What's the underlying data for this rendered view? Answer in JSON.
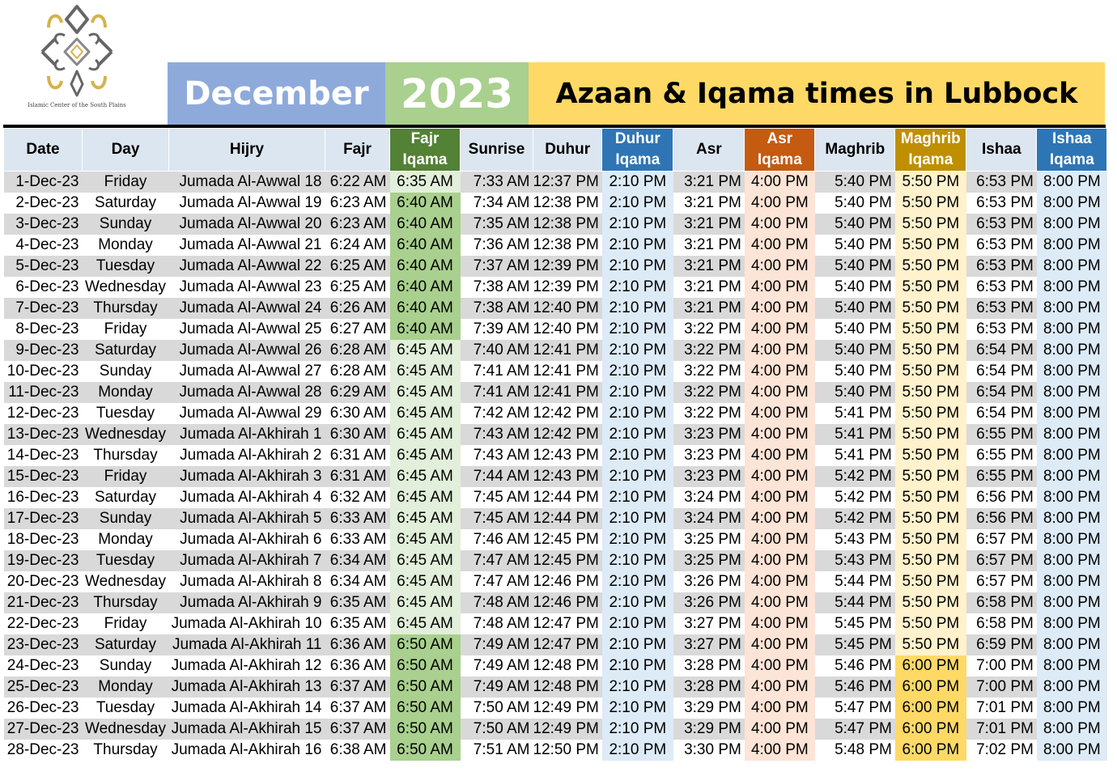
{
  "logo": {
    "icon": "flower-ornament-icon",
    "caption": "Islamic Center of the South Plains"
  },
  "banner": {
    "month": "December",
    "year": "2023",
    "title": "Azaan & Iqama times in Lubbock"
  },
  "colors": {
    "month_bg": "#8eaadb",
    "year_bg": "#a9d08e",
    "title_bg": "#ffd966",
    "fajr_iqama": "#538135",
    "duhur_iqama": "#2f75b5",
    "asr_iqama": "#c55a11",
    "maghrib_iqama": "#bf8f00",
    "ishaa_iqama": "#2e75b6"
  },
  "columns": [
    "Date",
    "Day",
    "Hijry",
    "Fajr",
    "Fajr Iqama",
    "Sunrise",
    "Duhur",
    "Duhur Iqama",
    "Asr",
    "Asr Iqama",
    "Maghrib",
    "Maghrib Iqama",
    "Ishaa",
    "Ishaa Iqama"
  ],
  "rows": [
    [
      "1-Dec-23",
      "Friday",
      "Jumada Al-Awwal 18",
      "6:22 AM",
      "6:35 AM",
      "7:33 AM",
      "12:37 PM",
      "2:10 PM",
      "3:21 PM",
      "4:00 PM",
      "5:40 PM",
      "5:50 PM",
      "6:53 PM",
      "8:00 PM"
    ],
    [
      "2-Dec-23",
      "Saturday",
      "Jumada Al-Awwal 19",
      "6:23 AM",
      "6:40 AM",
      "7:34 AM",
      "12:38 PM",
      "2:10 PM",
      "3:21 PM",
      "4:00 PM",
      "5:40 PM",
      "5:50 PM",
      "6:53 PM",
      "8:00 PM"
    ],
    [
      "3-Dec-23",
      "Sunday",
      "Jumada Al-Awwal 20",
      "6:23 AM",
      "6:40 AM",
      "7:35 AM",
      "12:38 PM",
      "2:10 PM",
      "3:21 PM",
      "4:00 PM",
      "5:40 PM",
      "5:50 PM",
      "6:53 PM",
      "8:00 PM"
    ],
    [
      "4-Dec-23",
      "Monday",
      "Jumada Al-Awwal 21",
      "6:24 AM",
      "6:40 AM",
      "7:36 AM",
      "12:38 PM",
      "2:10 PM",
      "3:21 PM",
      "4:00 PM",
      "5:40 PM",
      "5:50 PM",
      "6:53 PM",
      "8:00 PM"
    ],
    [
      "5-Dec-23",
      "Tuesday",
      "Jumada Al-Awwal 22",
      "6:25 AM",
      "6:40 AM",
      "7:37 AM",
      "12:39 PM",
      "2:10 PM",
      "3:21 PM",
      "4:00 PM",
      "5:40 PM",
      "5:50 PM",
      "6:53 PM",
      "8:00 PM"
    ],
    [
      "6-Dec-23",
      "Wednesday",
      "Jumada Al-Awwal 23",
      "6:25 AM",
      "6:40 AM",
      "7:38 AM",
      "12:39 PM",
      "2:10 PM",
      "3:21 PM",
      "4:00 PM",
      "5:40 PM",
      "5:50 PM",
      "6:53 PM",
      "8:00 PM"
    ],
    [
      "7-Dec-23",
      "Thursday",
      "Jumada Al-Awwal 24",
      "6:26 AM",
      "6:40 AM",
      "7:38 AM",
      "12:40 PM",
      "2:10 PM",
      "3:21 PM",
      "4:00 PM",
      "5:40 PM",
      "5:50 PM",
      "6:53 PM",
      "8:00 PM"
    ],
    [
      "8-Dec-23",
      "Friday",
      "Jumada Al-Awwal 25",
      "6:27 AM",
      "6:40 AM",
      "7:39 AM",
      "12:40 PM",
      "2:10 PM",
      "3:22 PM",
      "4:00 PM",
      "5:40 PM",
      "5:50 PM",
      "6:53 PM",
      "8:00 PM"
    ],
    [
      "9-Dec-23",
      "Saturday",
      "Jumada Al-Awwal 26",
      "6:28 AM",
      "6:45 AM",
      "7:40 AM",
      "12:41 PM",
      "2:10 PM",
      "3:22 PM",
      "4:00 PM",
      "5:40 PM",
      "5:50 PM",
      "6:54 PM",
      "8:00 PM"
    ],
    [
      "10-Dec-23",
      "Sunday",
      "Jumada Al-Awwal 27",
      "6:28 AM",
      "6:45 AM",
      "7:41 AM",
      "12:41 PM",
      "2:10 PM",
      "3:22 PM",
      "4:00 PM",
      "5:40 PM",
      "5:50 PM",
      "6:54 PM",
      "8:00 PM"
    ],
    [
      "11-Dec-23",
      "Monday",
      "Jumada Al-Awwal 28",
      "6:29 AM",
      "6:45 AM",
      "7:41 AM",
      "12:41 PM",
      "2:10 PM",
      "3:22 PM",
      "4:00 PM",
      "5:40 PM",
      "5:50 PM",
      "6:54 PM",
      "8:00 PM"
    ],
    [
      "12-Dec-23",
      "Tuesday",
      "Jumada Al-Awwal 29",
      "6:30 AM",
      "6:45 AM",
      "7:42 AM",
      "12:42 PM",
      "2:10 PM",
      "3:22 PM",
      "4:00 PM",
      "5:41 PM",
      "5:50 PM",
      "6:54 PM",
      "8:00 PM"
    ],
    [
      "13-Dec-23",
      "Wednesday",
      "Jumada Al-Akhirah 1",
      "6:30 AM",
      "6:45 AM",
      "7:43 AM",
      "12:42 PM",
      "2:10 PM",
      "3:23 PM",
      "4:00 PM",
      "5:41 PM",
      "5:50 PM",
      "6:55 PM",
      "8:00 PM"
    ],
    [
      "14-Dec-23",
      "Thursday",
      "Jumada Al-Akhirah 2",
      "6:31 AM",
      "6:45 AM",
      "7:43 AM",
      "12:43 PM",
      "2:10 PM",
      "3:23 PM",
      "4:00 PM",
      "5:41 PM",
      "5:50 PM",
      "6:55 PM",
      "8:00 PM"
    ],
    [
      "15-Dec-23",
      "Friday",
      "Jumada Al-Akhirah 3",
      "6:31 AM",
      "6:45 AM",
      "7:44 AM",
      "12:43 PM",
      "2:10 PM",
      "3:23 PM",
      "4:00 PM",
      "5:42 PM",
      "5:50 PM",
      "6:55 PM",
      "8:00 PM"
    ],
    [
      "16-Dec-23",
      "Saturday",
      "Jumada Al-Akhirah 4",
      "6:32 AM",
      "6:45 AM",
      "7:45 AM",
      "12:44 PM",
      "2:10 PM",
      "3:24 PM",
      "4:00 PM",
      "5:42 PM",
      "5:50 PM",
      "6:56 PM",
      "8:00 PM"
    ],
    [
      "17-Dec-23",
      "Sunday",
      "Jumada Al-Akhirah 5",
      "6:33 AM",
      "6:45 AM",
      "7:45 AM",
      "12:44 PM",
      "2:10 PM",
      "3:24 PM",
      "4:00 PM",
      "5:42 PM",
      "5:50 PM",
      "6:56 PM",
      "8:00 PM"
    ],
    [
      "18-Dec-23",
      "Monday",
      "Jumada Al-Akhirah 6",
      "6:33 AM",
      "6:45 AM",
      "7:46 AM",
      "12:45 PM",
      "2:10 PM",
      "3:25 PM",
      "4:00 PM",
      "5:43 PM",
      "5:50 PM",
      "6:57 PM",
      "8:00 PM"
    ],
    [
      "19-Dec-23",
      "Tuesday",
      "Jumada Al-Akhirah 7",
      "6:34 AM",
      "6:45 AM",
      "7:47 AM",
      "12:45 PM",
      "2:10 PM",
      "3:25 PM",
      "4:00 PM",
      "5:43 PM",
      "5:50 PM",
      "6:57 PM",
      "8:00 PM"
    ],
    [
      "20-Dec-23",
      "Wednesday",
      "Jumada Al-Akhirah 8",
      "6:34 AM",
      "6:45 AM",
      "7:47 AM",
      "12:46 PM",
      "2:10 PM",
      "3:26 PM",
      "4:00 PM",
      "5:44 PM",
      "5:50 PM",
      "6:57 PM",
      "8:00 PM"
    ],
    [
      "21-Dec-23",
      "Thursday",
      "Jumada Al-Akhirah 9",
      "6:35 AM",
      "6:45 AM",
      "7:48 AM",
      "12:46 PM",
      "2:10 PM",
      "3:26 PM",
      "4:00 PM",
      "5:44 PM",
      "5:50 PM",
      "6:58 PM",
      "8:00 PM"
    ],
    [
      "22-Dec-23",
      "Friday",
      "Jumada Al-Akhirah 10",
      "6:35 AM",
      "6:45 AM",
      "7:48 AM",
      "12:47 PM",
      "2:10 PM",
      "3:27 PM",
      "4:00 PM",
      "5:45 PM",
      "5:50 PM",
      "6:58 PM",
      "8:00 PM"
    ],
    [
      "23-Dec-23",
      "Saturday",
      "Jumada Al-Akhirah 11",
      "6:36 AM",
      "6:50 AM",
      "7:49 AM",
      "12:47 PM",
      "2:10 PM",
      "3:27 PM",
      "4:00 PM",
      "5:45 PM",
      "5:50 PM",
      "6:59 PM",
      "8:00 PM"
    ],
    [
      "24-Dec-23",
      "Sunday",
      "Jumada Al-Akhirah 12",
      "6:36 AM",
      "6:50 AM",
      "7:49 AM",
      "12:48 PM",
      "2:10 PM",
      "3:28 PM",
      "4:00 PM",
      "5:46 PM",
      "6:00 PM",
      "7:00 PM",
      "8:00 PM"
    ],
    [
      "25-Dec-23",
      "Monday",
      "Jumada Al-Akhirah 13",
      "6:37 AM",
      "6:50 AM",
      "7:49 AM",
      "12:48 PM",
      "2:10 PM",
      "3:28 PM",
      "4:00 PM",
      "5:46 PM",
      "6:00 PM",
      "7:00 PM",
      "8:00 PM"
    ],
    [
      "26-Dec-23",
      "Tuesday",
      "Jumada Al-Akhirah 14",
      "6:37 AM",
      "6:50 AM",
      "7:50 AM",
      "12:49 PM",
      "2:10 PM",
      "3:29 PM",
      "4:00 PM",
      "5:47 PM",
      "6:00 PM",
      "7:01 PM",
      "8:00 PM"
    ],
    [
      "27-Dec-23",
      "Wednesday",
      "Jumada Al-Akhirah 15",
      "6:37 AM",
      "6:50 AM",
      "7:50 AM",
      "12:49 PM",
      "2:10 PM",
      "3:29 PM",
      "4:00 PM",
      "5:47 PM",
      "6:00 PM",
      "7:01 PM",
      "8:00 PM"
    ],
    [
      "28-Dec-23",
      "Thursday",
      "Jumada Al-Akhirah 16",
      "6:38 AM",
      "6:50 AM",
      "7:51 AM",
      "12:50 PM",
      "2:10 PM",
      "3:30 PM",
      "4:00 PM",
      "5:48 PM",
      "6:00 PM",
      "7:02 PM",
      "8:00 PM"
    ]
  ]
}
